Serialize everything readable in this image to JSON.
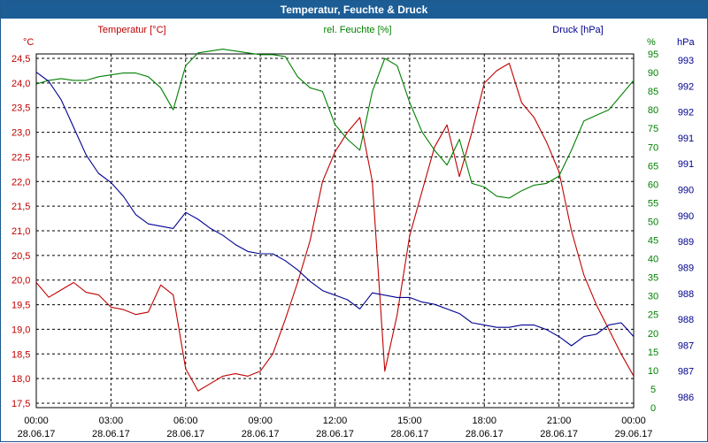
{
  "window": {
    "title": "Temperatur, Feuchte & Druck"
  },
  "colors": {
    "temperature": "#c00000",
    "humidity": "#008000",
    "pressure": "#000090",
    "grid": "#000000"
  },
  "chart_data": {
    "type": "line",
    "title": "Temperatur, Feuchte & Druck",
    "x_ticks": [
      {
        "time": "00:00",
        "date": "28.06.17"
      },
      {
        "time": "03:00",
        "date": "28.06.17"
      },
      {
        "time": "06:00",
        "date": "28.06.17"
      },
      {
        "time": "09:00",
        "date": "28.06.17"
      },
      {
        "time": "12:00",
        "date": "28.06.17"
      },
      {
        "time": "15:00",
        "date": "28.06.17"
      },
      {
        "time": "18:00",
        "date": "28.06.17"
      },
      {
        "time": "21:00",
        "date": "28.06.17"
      },
      {
        "time": "00:00",
        "date": "29.06.17"
      }
    ],
    "xlim": [
      0,
      24
    ],
    "axes": {
      "temperature": {
        "unit": "°C",
        "label": "Temperatur [°C]",
        "min": 17.5,
        "max": 24.5,
        "ticks": [
          "24,5",
          "24,0",
          "23,5",
          "23,0",
          "22,5",
          "22,0",
          "21,5",
          "21,0",
          "20,5",
          "20,0",
          "19,5",
          "19,0",
          "18,5",
          "18,0",
          "17,5"
        ]
      },
      "humidity": {
        "unit": "%",
        "label": "rel. Feuchte [%]",
        "min": 0,
        "max": 95,
        "ticks": [
          "95",
          "90",
          "85",
          "80",
          "75",
          "70",
          "65",
          "60",
          "55",
          "50",
          "45",
          "40",
          "35",
          "30",
          "25",
          "20",
          "15",
          "10",
          "5",
          "0"
        ]
      },
      "pressure": {
        "unit": "hPa",
        "label": "Druck [hPa]",
        "min": 985.5,
        "max": 993,
        "ticks": [
          "993",
          "992",
          "992",
          "991",
          "991",
          "990",
          "990",
          "989",
          "989",
          "988",
          "988",
          "987",
          "987",
          "986"
        ]
      }
    },
    "series": [
      {
        "name": "Temperatur [°C]",
        "axis": "temperature",
        "x": [
          0,
          0.5,
          1,
          1.5,
          2,
          2.5,
          3,
          3.5,
          4,
          4.5,
          5,
          5.5,
          6,
          6.5,
          7,
          7.5,
          8,
          8.5,
          9,
          9.5,
          10,
          10.5,
          11,
          11.5,
          12,
          12.5,
          13,
          13.5,
          14,
          14.5,
          15,
          15.5,
          16,
          16.5,
          17,
          17.5,
          18,
          18.5,
          19,
          19.5,
          20,
          20.5,
          21,
          21.5,
          22,
          22.5,
          23,
          23.5,
          24
        ],
        "values": [
          19.95,
          19.65,
          19.8,
          19.95,
          19.75,
          19.7,
          19.45,
          19.4,
          19.3,
          19.35,
          19.9,
          19.7,
          18.2,
          17.75,
          17.9,
          18.05,
          18.1,
          18.05,
          18.15,
          18.5,
          19.2,
          19.95,
          20.8,
          22.0,
          22.6,
          23.0,
          23.3,
          22.0,
          18.15,
          19.3,
          20.9,
          21.8,
          22.7,
          23.15,
          22.1,
          23.0,
          24.0,
          24.25,
          24.4,
          23.6,
          23.3,
          22.8,
          22.2,
          21.0,
          20.1,
          19.5,
          19.0,
          18.5,
          18.05
        ]
      },
      {
        "name": "rel. Feuchte [%]",
        "axis": "humidity",
        "x": [
          0,
          0.5,
          1,
          1.5,
          2,
          2.5,
          3,
          3.5,
          4,
          4.5,
          5,
          5.5,
          6,
          6.5,
          7,
          7.5,
          8,
          8.5,
          9,
          9.5,
          10,
          10.5,
          11,
          11.5,
          12,
          12.5,
          13,
          13.5,
          14,
          14.5,
          15,
          15.5,
          16,
          16.5,
          17,
          17.5,
          18,
          18.5,
          19,
          19.5,
          20,
          20.5,
          21,
          21.5,
          22,
          22.5,
          23,
          23.5,
          24
        ],
        "values": [
          88,
          89,
          89.5,
          89,
          89,
          90,
          90.5,
          91,
          91,
          90,
          87,
          81,
          93,
          96.5,
          97,
          97.5,
          97,
          96.5,
          96,
          96,
          95.5,
          90,
          87,
          86,
          77,
          73,
          70,
          86,
          95,
          93,
          83,
          75,
          70,
          66,
          73,
          61,
          60,
          57.5,
          57,
          59,
          60.5,
          61,
          63,
          70,
          78,
          79.5,
          81,
          85,
          89
        ]
      },
      {
        "name": "Druck [hPa]",
        "axis": "pressure",
        "x": [
          0,
          0.5,
          1,
          1.5,
          2,
          2.5,
          3,
          3.5,
          4,
          4.5,
          5,
          5.5,
          6,
          6.5,
          7,
          7.5,
          8,
          8.5,
          9,
          9.5,
          10,
          10.5,
          11,
          11.5,
          12,
          12.5,
          13,
          13.5,
          14,
          14.5,
          15,
          15.5,
          16,
          16.5,
          17,
          17.5,
          18,
          18.5,
          19,
          19.5,
          20,
          20.5,
          21,
          21.5,
          22,
          22.5,
          23,
          23.5,
          24
        ],
        "values": [
          992.7,
          992.5,
          992.1,
          991.5,
          990.9,
          990.5,
          990.3,
          990.0,
          989.6,
          989.4,
          989.35,
          989.3,
          989.65,
          989.5,
          989.3,
          989.15,
          988.95,
          988.8,
          988.75,
          988.75,
          988.6,
          988.4,
          988.15,
          987.95,
          987.85,
          987.75,
          987.55,
          987.9,
          987.85,
          987.8,
          987.8,
          987.7,
          987.65,
          987.55,
          987.45,
          987.25,
          987.2,
          987.15,
          987.15,
          987.2,
          987.2,
          987.1,
          986.95,
          986.75,
          986.95,
          987.0,
          987.2,
          987.25,
          986.95
        ]
      }
    ],
    "grid": true,
    "legend": "top"
  }
}
